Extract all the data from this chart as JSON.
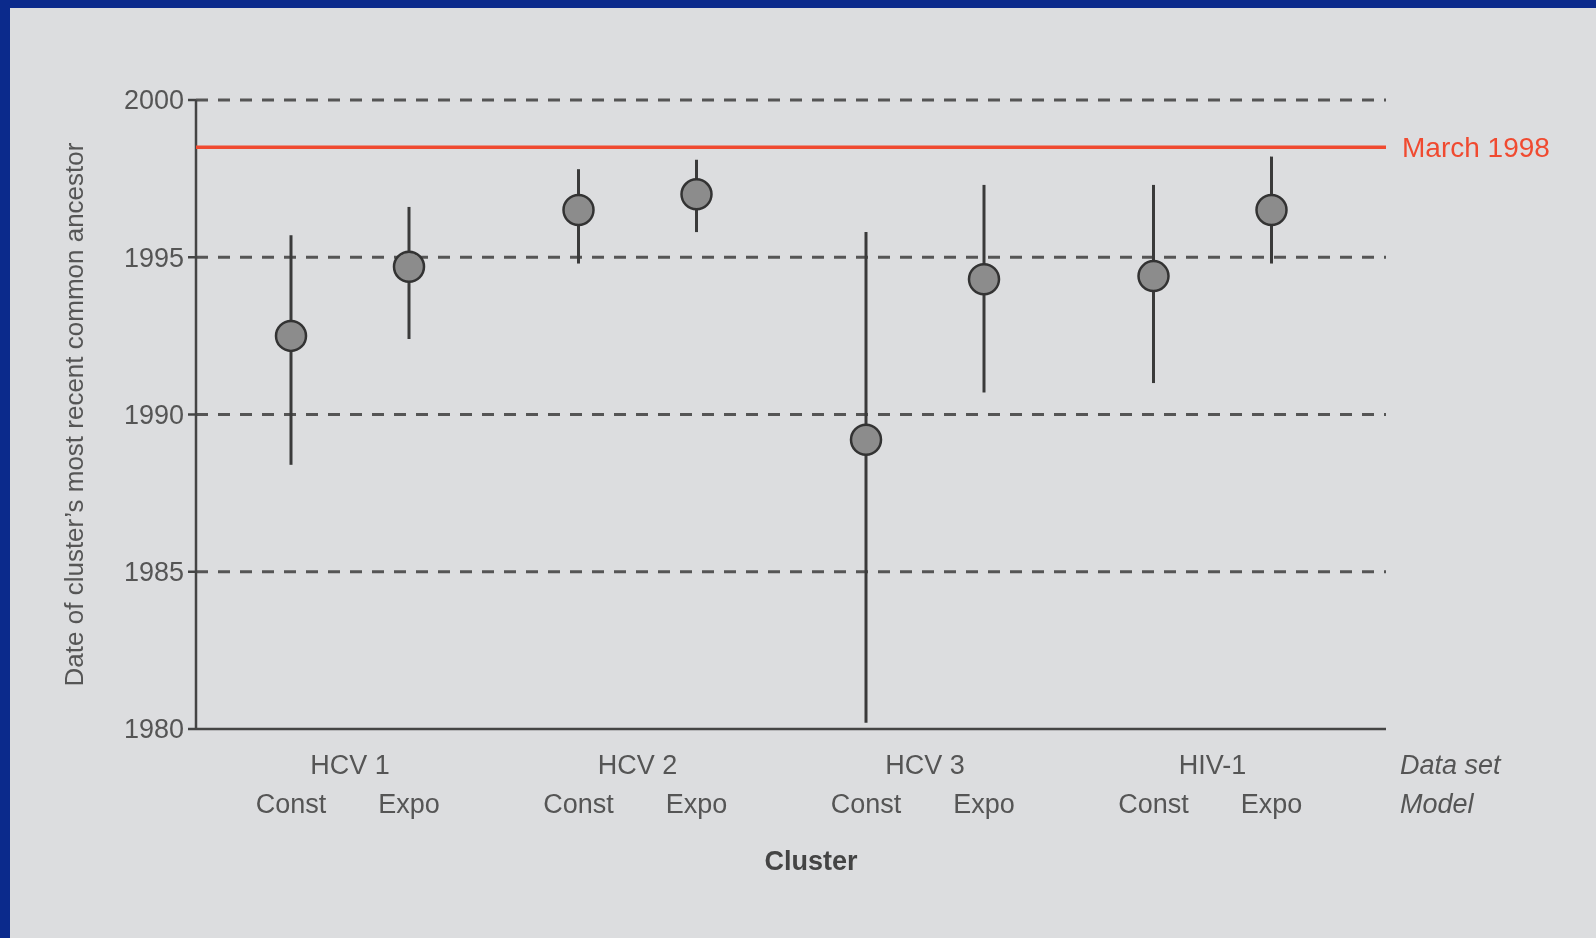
{
  "chart_data": {
    "type": "scatter",
    "xlabel": "Cluster",
    "ylabel": "Date of cluster’s most recent common ancestor",
    "categories": [
      "Const",
      "Expo",
      "Const",
      "Expo",
      "Const",
      "Expo",
      "Const",
      "Expo"
    ],
    "series": [
      {
        "color": "#8c8c8c",
        "values": [
          1992.5,
          1994.7,
          1996.5,
          1997.0,
          1989.2,
          1994.3,
          1994.4,
          1996.5
        ],
        "errors": [
          [
            1988.4,
            1995.7
          ],
          [
            1992.4,
            1996.6
          ],
          [
            1994.8,
            1997.8
          ],
          [
            1995.8,
            1998.1
          ],
          [
            1980.2,
            1995.8
          ],
          [
            1990.7,
            1997.3
          ],
          [
            1991.0,
            1997.3
          ],
          [
            1994.8,
            1998.2
          ]
        ]
      }
    ],
    "ylim": [
      1980,
      2000
    ],
    "yticks": [
      1980,
      1985,
      1990,
      1995,
      2000
    ],
    "grid": "y",
    "marker": "circle",
    "ref_lines": [
      {
        "axis": "y",
        "value": 1998.5,
        "label": "March 1998",
        "color": "#f04a30"
      }
    ],
    "annotations": [
      "HCV 1",
      "HCV 2",
      "HCV 3",
      "HIV-1",
      "Data set",
      "Model"
    ]
  }
}
